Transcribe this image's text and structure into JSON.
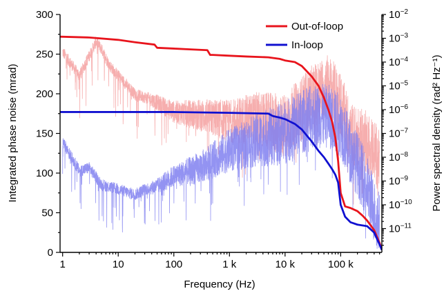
{
  "chart_data": {
    "type": "line",
    "xlabel": "Frequency (Hz)",
    "ylabel_left": "Integrated phase noise (mrad)",
    "ylabel_right": "Power spectral density (rad² Hz⁻¹)",
    "x_scale": "log",
    "xlim": [
      0.9,
      550000
    ],
    "ylim_left": [
      0,
      300
    ],
    "right_axis_scale": "log",
    "right_axis_range": [
      1e-12,
      0.01
    ],
    "grid": false,
    "legend_position": "top-right",
    "x_ticks": [
      {
        "value": 1,
        "label": "1"
      },
      {
        "value": 10,
        "label": "10"
      },
      {
        "value": 100,
        "label": "100"
      },
      {
        "value": 1000,
        "label": "1 k"
      },
      {
        "value": 10000,
        "label": "10 k"
      },
      {
        "value": 100000,
        "label": "100 k"
      }
    ],
    "y_left_ticks": [
      {
        "value": 0,
        "label": "0"
      },
      {
        "value": 50,
        "label": "50"
      },
      {
        "value": 100,
        "label": "100"
      },
      {
        "value": 150,
        "label": "150"
      },
      {
        "value": 200,
        "label": "200"
      },
      {
        "value": 250,
        "label": "250"
      },
      {
        "value": 300,
        "label": "300"
      }
    ],
    "y_right_ticks": [
      {
        "value": 1e-11,
        "base": "10",
        "exp": "−11"
      },
      {
        "value": 1e-10,
        "base": "10",
        "exp": "−10"
      },
      {
        "value": 1e-09,
        "base": "10",
        "exp": "−9"
      },
      {
        "value": 1e-08,
        "base": "10",
        "exp": "−8"
      },
      {
        "value": 1e-07,
        "base": "10",
        "exp": "−7"
      },
      {
        "value": 1e-06,
        "base": "10",
        "exp": "−6"
      },
      {
        "value": 1e-05,
        "base": "10",
        "exp": "−5"
      },
      {
        "value": 0.0001,
        "base": "10",
        "exp": "−4"
      },
      {
        "value": 0.001,
        "base": "10",
        "exp": "−3"
      },
      {
        "value": 0.01,
        "base": "10",
        "exp": "−2"
      }
    ],
    "series": [
      {
        "name": "Out-of-loop",
        "kind": "integrated",
        "axis": "left",
        "color": "#e8141c",
        "x": [
          0.9,
          3,
          10,
          20,
          45,
          50,
          100,
          200,
          400,
          450,
          500,
          1000,
          2000,
          5000,
          8000,
          10000,
          15000,
          20000,
          30000,
          40000,
          50000,
          60000,
          70000,
          80000,
          90000,
          100000,
          120000,
          150000,
          200000,
          250000,
          300000,
          400000,
          500000,
          550000
        ],
        "y": [
          272,
          271,
          268,
          265,
          262,
          258,
          257,
          256,
          255,
          249,
          249,
          248,
          247,
          246,
          244,
          242,
          240,
          235,
          222,
          210,
          195,
          180,
          165,
          145,
          115,
          75,
          58,
          56,
          52,
          46,
          40,
          28,
          12,
          4
        ]
      },
      {
        "name": "In-loop",
        "kind": "integrated",
        "axis": "left",
        "color": "#1010d0",
        "x": [
          0.9,
          10,
          100,
          1000,
          5000,
          6000,
          8000,
          10000,
          15000,
          20000,
          30000,
          40000,
          50000,
          60000,
          70000,
          80000,
          90000,
          100000,
          120000,
          150000,
          200000,
          300000,
          400000,
          500000,
          550000
        ],
        "y": [
          177,
          177,
          177,
          176,
          175,
          172,
          170,
          168,
          162,
          155,
          140,
          128,
          120,
          112,
          105,
          98,
          88,
          60,
          45,
          38,
          35,
          33,
          25,
          10,
          3
        ]
      },
      {
        "name": "Out-of-loop PSD",
        "kind": "psd",
        "axis": "right",
        "color": "#f4a0a0",
        "x": [
          1,
          2,
          3,
          4,
          5,
          7,
          10,
          20,
          40,
          100,
          300,
          1000,
          3000,
          10000,
          30000,
          60000,
          100000,
          150000,
          200000,
          300000,
          400000,
          500000
        ],
        "y": [
          0.0003,
          3e-05,
          0.0002,
          0.0008,
          0.0004,
          8e-05,
          3e-05,
          5e-06,
          3e-06,
          1e-06,
          8e-07,
          5e-07,
          7e-07,
          4e-07,
          6e-06,
          2e-05,
          3e-06,
          2e-07,
          1e-07,
          8e-08,
          4e-08,
          1e-08
        ]
      },
      {
        "name": "In-loop PSD",
        "kind": "psd",
        "axis": "right",
        "color": "#8080f0",
        "x": [
          1,
          2,
          3,
          5,
          10,
          20,
          30,
          50,
          100,
          300,
          1000,
          3000,
          10000,
          30000,
          60000,
          100000,
          150000,
          200000,
          300000,
          400000,
          500000
        ],
        "y": [
          5e-08,
          3e-09,
          4e-09,
          8e-10,
          5e-10,
          3e-10,
          5e-10,
          7e-10,
          2e-09,
          5e-09,
          3e-08,
          8e-08,
          2e-07,
          1e-06,
          1e-06,
          4e-07,
          3e-08,
          1e-08,
          1e-09,
          1e-10,
          3e-11
        ]
      }
    ],
    "legend": [
      {
        "label": "Out-of-loop",
        "color": "#e8141c"
      },
      {
        "label": "In-loop",
        "color": "#1010d0"
      }
    ]
  }
}
